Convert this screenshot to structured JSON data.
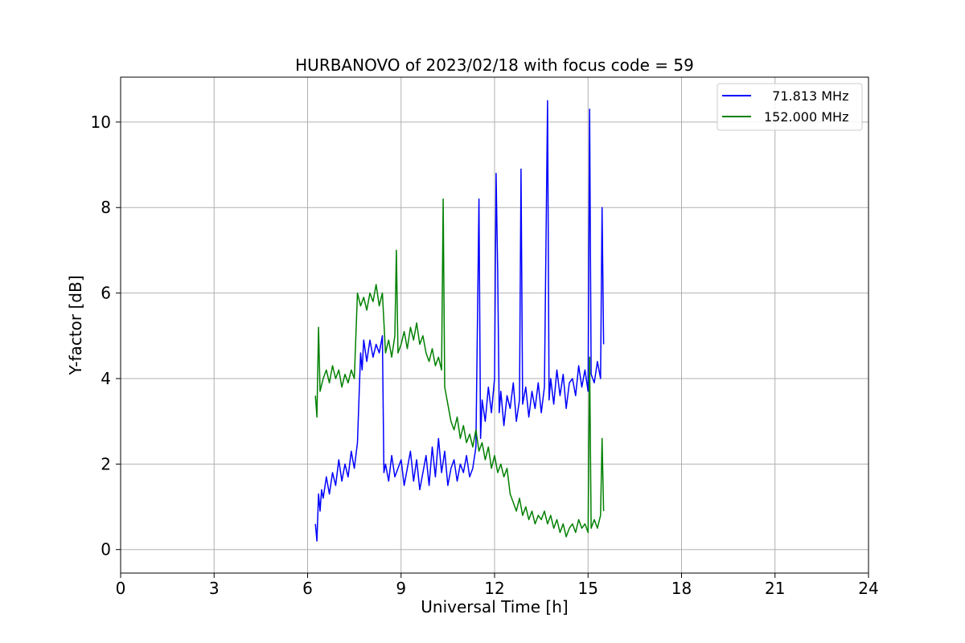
{
  "chart_data": {
    "type": "line",
    "title": "HURBANOVO of 2023/02/18 with focus code = 59",
    "xlabel": "Universal Time [h]",
    "ylabel": "Y-factor [dB]",
    "xlim": [
      0,
      24
    ],
    "ylim": [
      -0.55,
      11.05
    ],
    "x_ticks": [
      0,
      3,
      6,
      9,
      12,
      15,
      18,
      21,
      24
    ],
    "y_ticks": [
      0,
      2,
      4,
      6,
      8,
      10
    ],
    "grid": true,
    "legend_position": "top-right",
    "series": [
      {
        "name": "  71.813 MHz",
        "color": "#0000ff",
        "x": [
          6.25,
          6.3,
          6.35,
          6.4,
          6.45,
          6.5,
          6.6,
          6.7,
          6.8,
          6.9,
          7.0,
          7.1,
          7.2,
          7.3,
          7.4,
          7.5,
          7.6,
          7.7,
          7.75,
          7.8,
          7.9,
          8.0,
          8.1,
          8.2,
          8.3,
          8.4,
          8.45,
          8.5,
          8.6,
          8.7,
          8.8,
          8.9,
          9.0,
          9.1,
          9.2,
          9.3,
          9.4,
          9.5,
          9.6,
          9.7,
          9.8,
          9.9,
          10.0,
          10.1,
          10.2,
          10.3,
          10.4,
          10.5,
          10.6,
          10.7,
          10.8,
          10.9,
          11.0,
          11.1,
          11.2,
          11.3,
          11.4,
          11.5,
          11.55,
          11.6,
          11.7,
          11.8,
          11.9,
          12.0,
          12.05,
          12.1,
          12.15,
          12.2,
          12.3,
          12.4,
          12.5,
          12.6,
          12.7,
          12.8,
          12.85,
          12.9,
          13.0,
          13.1,
          13.2,
          13.3,
          13.4,
          13.5,
          13.6,
          13.7,
          13.75,
          13.8,
          13.9,
          14.0,
          14.1,
          14.2,
          14.3,
          14.4,
          14.5,
          14.6,
          14.7,
          14.8,
          14.9,
          15.0,
          15.05,
          15.1,
          15.2,
          15.3,
          15.4,
          15.45,
          15.5
        ],
        "y": [
          0.6,
          0.2,
          1.3,
          0.9,
          1.4,
          1.2,
          1.7,
          1.3,
          1.8,
          1.5,
          2.1,
          1.6,
          2.0,
          1.7,
          2.3,
          1.9,
          2.5,
          4.6,
          4.2,
          4.9,
          4.4,
          4.9,
          4.5,
          4.8,
          4.6,
          5.0,
          1.8,
          2.0,
          1.6,
          2.2,
          1.7,
          1.9,
          2.1,
          1.5,
          1.9,
          2.3,
          1.6,
          2.1,
          1.4,
          1.8,
          2.2,
          1.5,
          2.4,
          1.7,
          2.6,
          1.8,
          2.3,
          1.5,
          1.9,
          2.1,
          1.6,
          2.0,
          1.8,
          2.2,
          1.7,
          1.9,
          2.4,
          8.2,
          2.6,
          3.5,
          3.0,
          3.8,
          3.2,
          4.0,
          8.8,
          6.5,
          3.2,
          3.7,
          2.9,
          3.6,
          3.3,
          3.9,
          3.0,
          3.5,
          8.9,
          3.4,
          3.8,
          3.1,
          3.7,
          3.3,
          3.9,
          3.2,
          3.8,
          10.5,
          3.5,
          4.0,
          3.4,
          4.2,
          3.6,
          4.1,
          3.3,
          3.9,
          4.0,
          3.6,
          4.3,
          3.8,
          4.2,
          3.7,
          10.3,
          4.1,
          3.9,
          4.4,
          4.0,
          8.0,
          4.8
        ]
      },
      {
        "name": "152.000 MHz",
        "color": "#008000",
        "x": [
          6.25,
          6.3,
          6.35,
          6.4,
          6.5,
          6.6,
          6.7,
          6.8,
          6.9,
          7.0,
          7.1,
          7.2,
          7.3,
          7.4,
          7.5,
          7.6,
          7.7,
          7.8,
          7.9,
          8.0,
          8.1,
          8.2,
          8.3,
          8.4,
          8.5,
          8.6,
          8.7,
          8.8,
          8.85,
          8.9,
          9.0,
          9.1,
          9.2,
          9.3,
          9.4,
          9.5,
          9.6,
          9.7,
          9.8,
          9.9,
          10.0,
          10.1,
          10.2,
          10.3,
          10.35,
          10.4,
          10.5,
          10.6,
          10.7,
          10.8,
          10.9,
          11.0,
          11.1,
          11.2,
          11.3,
          11.4,
          11.5,
          11.6,
          11.7,
          11.8,
          11.9,
          12.0,
          12.1,
          12.2,
          12.3,
          12.4,
          12.5,
          12.6,
          12.7,
          12.8,
          12.9,
          13.0,
          13.1,
          13.2,
          13.3,
          13.4,
          13.5,
          13.6,
          13.7,
          13.8,
          13.9,
          14.0,
          14.1,
          14.2,
          14.3,
          14.4,
          14.5,
          14.6,
          14.7,
          14.8,
          14.9,
          15.0,
          15.05,
          15.1,
          15.2,
          15.3,
          15.4,
          15.45,
          15.5
        ],
        "y": [
          3.6,
          3.1,
          5.2,
          3.7,
          4.0,
          4.2,
          3.9,
          4.3,
          4.0,
          4.2,
          3.8,
          4.1,
          3.9,
          4.2,
          4.0,
          6.0,
          5.7,
          5.9,
          5.6,
          6.0,
          5.8,
          6.2,
          5.7,
          6.0,
          4.6,
          4.9,
          4.5,
          5.0,
          7.0,
          4.6,
          4.8,
          5.1,
          4.7,
          5.2,
          4.9,
          5.3,
          4.8,
          5.0,
          4.6,
          4.4,
          4.7,
          4.3,
          4.5,
          4.2,
          8.2,
          3.8,
          3.4,
          3.0,
          2.8,
          3.1,
          2.6,
          2.9,
          2.5,
          2.7,
          2.4,
          2.8,
          2.3,
          2.5,
          2.1,
          2.4,
          1.9,
          2.2,
          1.8,
          2.0,
          1.7,
          1.9,
          1.3,
          1.1,
          0.9,
          1.2,
          0.8,
          1.0,
          0.7,
          0.9,
          0.6,
          0.8,
          0.7,
          0.9,
          0.6,
          0.8,
          0.5,
          0.7,
          0.4,
          0.6,
          0.3,
          0.5,
          0.6,
          0.4,
          0.7,
          0.5,
          0.6,
          0.4,
          4.5,
          0.5,
          0.7,
          0.5,
          0.8,
          2.6,
          0.9
        ]
      }
    ]
  }
}
